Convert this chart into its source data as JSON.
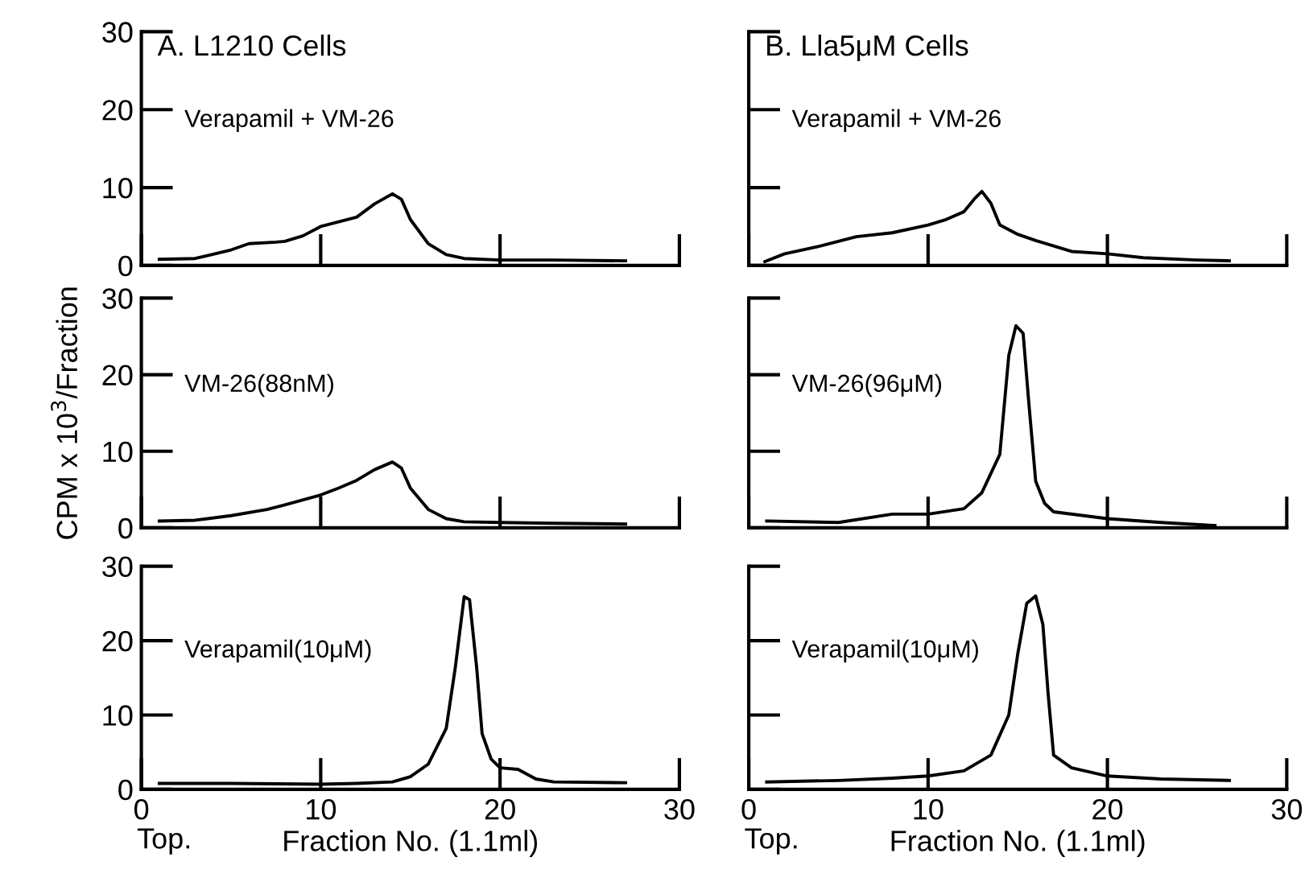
{
  "chart_data": [
    {
      "type": "line",
      "title": "A. L1210 Cells",
      "subtitle": "Verapamil + VM-26",
      "xlim": [
        0,
        30
      ],
      "ylim": [
        0,
        30
      ],
      "xticks": [
        0,
        10,
        20,
        30
      ],
      "yticks": [
        0,
        10,
        20,
        30
      ],
      "tick_labels": "y",
      "grid": false,
      "legend": false,
      "series": [
        {
          "color": "#000000",
          "x": [
            1,
            3,
            5,
            6,
            7.5,
            8,
            9,
            10,
            11,
            12,
            13,
            14,
            14.5,
            15,
            16,
            17,
            18,
            20,
            23,
            27
          ],
          "values": [
            0.8,
            0.9,
            2.0,
            2.8,
            3.0,
            3.1,
            3.8,
            5.0,
            5.6,
            6.2,
            7.9,
            9.2,
            8.5,
            5.9,
            2.8,
            1.4,
            0.9,
            0.7,
            0.7,
            0.6
          ]
        }
      ]
    },
    {
      "type": "line",
      "title": "B. Lla5μM Cells",
      "subtitle": "Verapamil + VM-26",
      "xlim": [
        0,
        30
      ],
      "ylim": [
        0,
        30
      ],
      "xticks": [
        0,
        10,
        20,
        30
      ],
      "yticks": [
        0,
        10,
        20,
        30
      ],
      "tick_labels": false,
      "grid": false,
      "legend": false,
      "series": [
        {
          "color": "#000000",
          "x": [
            0.9,
            2,
            4,
            6,
            8,
            10,
            11,
            12,
            12.6,
            13,
            13.5,
            14,
            15,
            16,
            18,
            20,
            22,
            25,
            26.8
          ],
          "values": [
            0.5,
            1.5,
            2.5,
            3.7,
            4.2,
            5.2,
            5.9,
            6.9,
            8.6,
            9.5,
            8.0,
            5.2,
            4.0,
            3.2,
            1.8,
            1.5,
            1.0,
            0.7,
            0.6
          ]
        }
      ]
    },
    {
      "type": "line",
      "subtitle": "VM-26(88nM)",
      "ylabel": "CPM x 10$^{3}$/Fraction",
      "xlim": [
        0,
        30
      ],
      "ylim": [
        0,
        30
      ],
      "xticks": [
        0,
        10,
        20,
        30
      ],
      "yticks": [
        0,
        10,
        20,
        30
      ],
      "tick_labels": "y",
      "grid": false,
      "legend": false,
      "series": [
        {
          "color": "#000000",
          "x": [
            1,
            3,
            5,
            7,
            8,
            10,
            11,
            12,
            13,
            14,
            14.5,
            15,
            16,
            17,
            18,
            20,
            23,
            27
          ],
          "values": [
            0.9,
            1.0,
            1.6,
            2.4,
            3.0,
            4.3,
            5.2,
            6.2,
            7.6,
            8.6,
            7.8,
            5.2,
            2.4,
            1.2,
            0.8,
            0.7,
            0.6,
            0.5
          ]
        }
      ]
    },
    {
      "type": "line",
      "subtitle": "VM-26(96μM)",
      "xlim": [
        0,
        30
      ],
      "ylim": [
        0,
        30
      ],
      "xticks": [
        0,
        10,
        20,
        30
      ],
      "yticks": [
        0,
        10,
        20,
        30
      ],
      "tick_labels": false,
      "grid": false,
      "legend": false,
      "series": [
        {
          "color": "#000000",
          "x": [
            1,
            5,
            8,
            10,
            12,
            13,
            14,
            14.5,
            14.9,
            15.3,
            15.6,
            16,
            16.5,
            17,
            20,
            23,
            26
          ],
          "values": [
            0.9,
            0.7,
            1.8,
            1.8,
            2.5,
            4.6,
            9.6,
            22.5,
            26.4,
            25.4,
            16.8,
            6.1,
            3.2,
            2.1,
            1.2,
            0.7,
            0.3
          ]
        }
      ]
    },
    {
      "type": "line",
      "subtitle": "Verapamil(10μM)",
      "xlabel": "Fraction No. (1.1ml)",
      "annotations": [
        "Top."
      ],
      "xlim": [
        0,
        30
      ],
      "ylim": [
        0,
        30
      ],
      "xticks": [
        0,
        10,
        20,
        30
      ],
      "yticks": [
        0,
        10,
        20,
        30
      ],
      "grid": false,
      "legend": false,
      "series": [
        {
          "color": "#000000",
          "x": [
            1,
            5,
            10,
            12,
            14,
            15,
            16,
            17,
            17.5,
            18,
            18.3,
            18.7,
            19,
            19.5,
            20,
            21,
            22,
            23,
            27
          ],
          "values": [
            0.8,
            0.8,
            0.7,
            0.8,
            1.0,
            1.7,
            3.4,
            8.2,
            16.3,
            25.9,
            25.5,
            16.3,
            7.5,
            4.1,
            2.9,
            2.7,
            1.4,
            1.0,
            0.9
          ]
        }
      ]
    },
    {
      "type": "line",
      "subtitle": "Verapamil(10μM)",
      "xlabel": "Fraction No. (1.1ml)",
      "annotations": [
        "Top."
      ],
      "xlim": [
        0,
        30
      ],
      "ylim": [
        0,
        30
      ],
      "xticks": [
        0,
        10,
        20,
        30
      ],
      "yticks": [
        0,
        10,
        20,
        30
      ],
      "tick_labels": "x",
      "grid": false,
      "legend": false,
      "series": [
        {
          "color": "#000000",
          "x": [
            1,
            5,
            8,
            10,
            12,
            13.5,
            14.5,
            15,
            15.5,
            16,
            16.4,
            16.7,
            17,
            18,
            20,
            23,
            26.8
          ],
          "values": [
            1.0,
            1.2,
            1.5,
            1.8,
            2.5,
            4.6,
            10.0,
            18.2,
            25.0,
            26.0,
            22.2,
            12.7,
            4.6,
            2.9,
            1.8,
            1.4,
            1.2
          ]
        }
      ]
    }
  ]
}
